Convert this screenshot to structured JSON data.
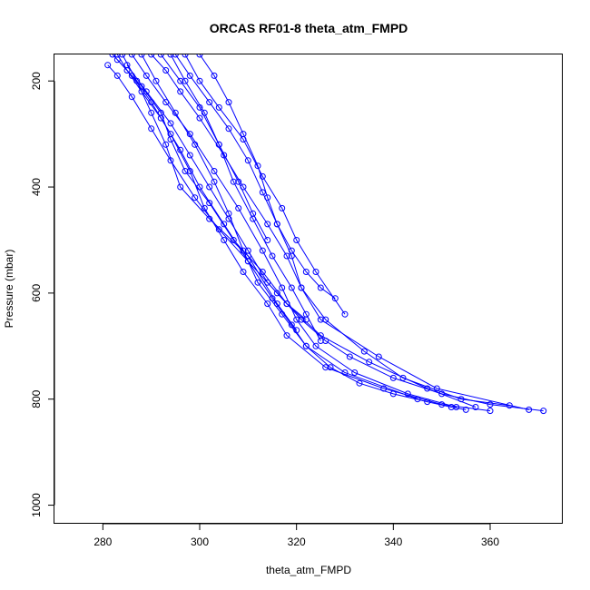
{
  "chart_data": {
    "type": "line",
    "title": "ORCAS RF01-8 theta_atm_FMPD",
    "xlabel": "theta_atm_FMPD",
    "ylabel": "Pressure (mbar)",
    "xlim": [
      270,
      375
    ],
    "ylim": [
      1035,
      150
    ],
    "y_reversed": true,
    "x_ticks": [
      280,
      300,
      320,
      340,
      360
    ],
    "y_ticks": [
      200,
      400,
      600,
      800,
      1000
    ],
    "grid": false,
    "legend": "none",
    "line_color": "#0000ff",
    "marker": "open-circle",
    "series": [
      {
        "x": [
          283,
          285,
          288,
          292,
          296,
          300,
          305,
          310,
          315,
          319,
          322,
          327,
          333,
          340,
          347,
          352,
          355
        ],
        "y": [
          150,
          180,
          220,
          270,
          330,
          400,
          470,
          540,
          610,
          660,
          700,
          740,
          770,
          790,
          805,
          815,
          820
        ]
      },
      {
        "x": [
          281,
          283,
          286,
          290,
          294,
          299,
          304,
          310,
          316,
          321,
          326,
          331,
          340,
          350,
          360,
          371
        ],
        "y": [
          170,
          190,
          230,
          290,
          350,
          420,
          480,
          540,
          600,
          650,
          690,
          720,
          760,
          790,
          810,
          822
        ]
      },
      {
        "x": [
          286,
          289,
          293,
          298,
          303,
          308,
          313,
          317,
          320,
          324,
          332,
          343,
          353
        ],
        "y": [
          150,
          190,
          240,
          300,
          370,
          440,
          520,
          590,
          650,
          700,
          750,
          790,
          815
        ]
      },
      {
        "x": [
          290,
          293,
          296,
          300,
          305,
          309,
          314,
          318,
          321,
          326,
          334,
          342,
          354,
          364
        ],
        "y": [
          150,
          180,
          220,
          270,
          340,
          400,
          470,
          530,
          590,
          650,
          710,
          760,
          800,
          812
        ]
      },
      {
        "x": [
          283,
          288,
          292,
          294,
          297,
          302,
          307,
          313,
          318,
          325,
          335,
          347,
          357
        ],
        "y": [
          160,
          210,
          260,
          310,
          370,
          430,
          500,
          560,
          620,
          680,
          730,
          780,
          815
        ]
      },
      {
        "x": [
          295,
          298,
          302,
          306,
          310,
          313,
          316,
          319,
          322,
          325,
          328
        ],
        "y": [
          150,
          190,
          240,
          290,
          350,
          410,
          470,
          520,
          560,
          590,
          610
        ]
      },
      {
        "x": [
          297,
          300,
          304,
          309,
          313,
          317,
          320,
          324,
          330
        ],
        "y": [
          150,
          200,
          250,
          310,
          380,
          440,
          500,
          560,
          640
        ]
      },
      {
        "x": [
          284,
          287,
          290,
          293,
          296,
          302,
          310,
          316,
          320
        ],
        "y": [
          150,
          200,
          260,
          320,
          400,
          460,
          530,
          620,
          670
        ]
      },
      {
        "x": [
          292,
          296,
          300,
          304,
          307,
          311,
          315,
          319,
          322,
          325
        ],
        "y": [
          150,
          200,
          250,
          320,
          390,
          460,
          530,
          590,
          640,
          690
        ]
      },
      {
        "x": [
          282,
          286,
          290,
          294,
          298,
          301,
          305,
          309,
          314,
          318,
          326,
          338,
          350,
          360
        ],
        "y": [
          150,
          190,
          240,
          300,
          370,
          440,
          500,
          560,
          620,
          680,
          740,
          780,
          810,
          822
        ]
      },
      {
        "x": [
          288,
          291,
          295,
          299,
          303,
          306,
          309,
          312,
          317,
          322,
          330,
          345
        ],
        "y": [
          150,
          200,
          260,
          320,
          390,
          450,
          520,
          580,
          640,
          700,
          750,
          800
        ]
      },
      {
        "x": [
          300,
          303,
          306,
          309,
          312,
          314,
          316,
          319,
          321,
          325,
          337,
          349,
          368
        ],
        "y": [
          150,
          190,
          240,
          300,
          360,
          420,
          470,
          530,
          590,
          650,
          720,
          780,
          820
        ]
      },
      {
        "x": [
          285,
          289,
          294,
          298,
          302,
          306,
          310,
          314,
          318,
          322
        ],
        "y": [
          170,
          220,
          280,
          340,
          400,
          460,
          520,
          580,
          620,
          650
        ]
      },
      {
        "x": [
          294,
          297,
          301,
          304,
          308,
          311,
          314
        ],
        "y": [
          150,
          200,
          260,
          320,
          390,
          450,
          500
        ]
      }
    ]
  }
}
